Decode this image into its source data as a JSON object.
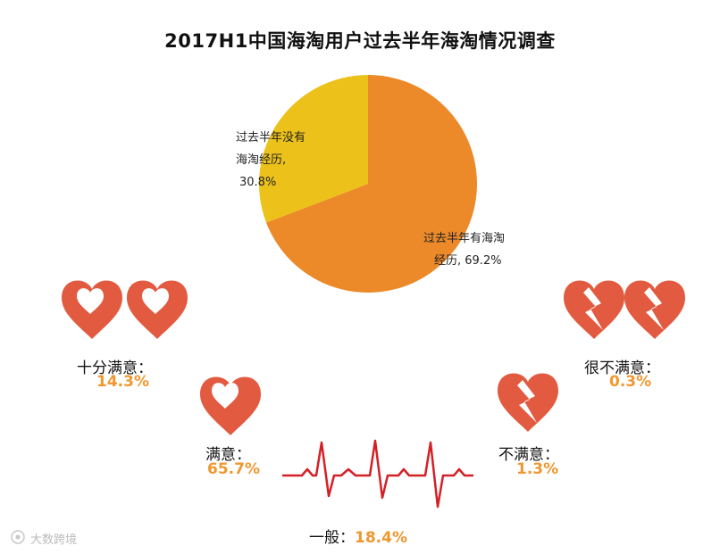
{
  "chart_data": [
    {
      "type": "pie",
      "title": "2017H1中国海淘用户过去半年海淘情况调查",
      "slices": [
        {
          "label": "过去半年有海淘经历",
          "label_lines": [
            "过去半年有海淘",
            "经历, 69.2%"
          ],
          "value": 69.2,
          "color": "#ec8a2a"
        },
        {
          "label": "过去半年没有海淘经历",
          "label_lines": [
            "过去半年没有",
            "海淘经历,",
            "30.8%"
          ],
          "value": 30.8,
          "color": "#ecc11a"
        }
      ]
    },
    {
      "type": "table",
      "categories": [
        {
          "key": "very_satisfied",
          "name": "十分满意：",
          "value_text": "14.3%",
          "value": 14.3,
          "icon": "heart-icon"
        },
        {
          "key": "satisfied",
          "name": "满意：",
          "value_text": "65.7%",
          "value": 65.7,
          "icon": "heart-icon"
        },
        {
          "key": "neutral",
          "name": "一般：",
          "value_text": "18.4%",
          "value": 18.4,
          "icon": "heartbeat-line-icon"
        },
        {
          "key": "unsatisfied",
          "name": "不满意：",
          "value_text": "1.3%",
          "value": 1.3,
          "icon": "broken-heart-icon"
        },
        {
          "key": "very_unsatisfied",
          "name": "很不满意：",
          "value_text": "0.3%",
          "value": 0.3,
          "icon": "broken-heart-icon"
        }
      ]
    }
  ],
  "colors": {
    "heart": "#e25a40",
    "value_text": "#f0972f",
    "pulse_line": "#d42027"
  },
  "watermarks": {
    "source_credit": "大数跨境"
  }
}
